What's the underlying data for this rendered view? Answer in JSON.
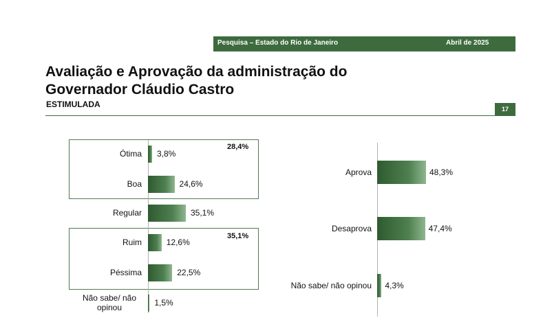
{
  "header": {
    "survey_label": "Pesquisa – Estado do Rio de Janeiro",
    "date_label": "Abril de 2025",
    "page_number": "17"
  },
  "title_line1": "Avaliação e Aprovação da administração do",
  "title_line2": "Governador Cláudio Castro",
  "subtitle": "ESTIMULADA",
  "colors": {
    "brand_green": "#3d6b3e",
    "bar_dark": "#2f5a30",
    "bar_light": "#8fb68f"
  },
  "chart_data": [
    {
      "type": "bar",
      "orientation": "horizontal",
      "categories": [
        "Ótima",
        "Boa",
        "Regular",
        "Ruim",
        "Péssima",
        "Não sabe/ não opinou"
      ],
      "values": [
        3.8,
        24.6,
        35.1,
        12.6,
        22.5,
        1.5
      ],
      "value_labels": [
        "3,8%",
        "24,6%",
        "35,1%",
        "12,6%",
        "22,5%",
        "1,5%"
      ],
      "group_totals": [
        {
          "members": [
            "Ótima",
            "Boa"
          ],
          "label": "28,4%"
        },
        {
          "members": [
            "Ruim",
            "Péssima"
          ],
          "label": "35,1%"
        }
      ],
      "unit": "%"
    },
    {
      "type": "bar",
      "orientation": "horizontal",
      "categories": [
        "Aprova",
        "Desaprova",
        "Não sabe/ não opinou"
      ],
      "values": [
        48.3,
        47.4,
        4.3
      ],
      "value_labels": [
        "48,3%",
        "47,4%",
        "4,3%"
      ],
      "unit": "%"
    }
  ]
}
